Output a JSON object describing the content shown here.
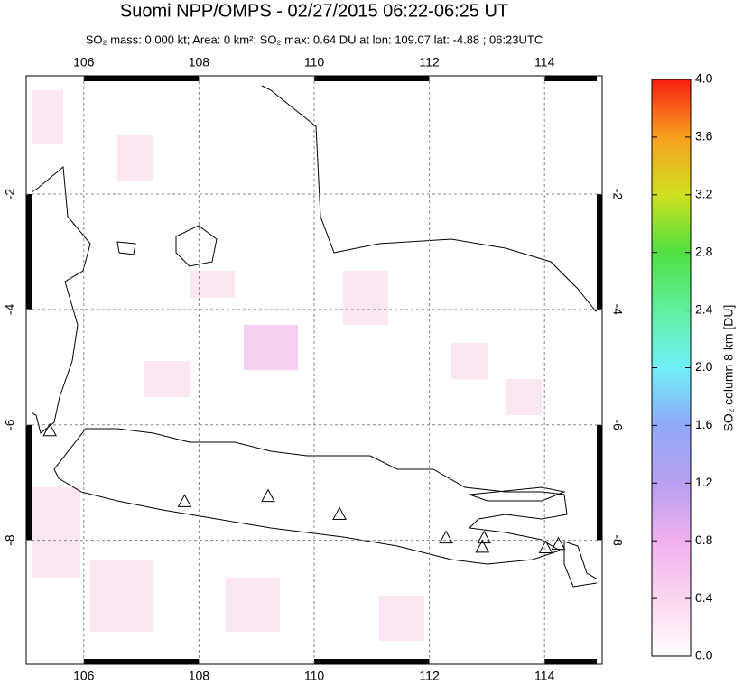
{
  "chart_data": {
    "type": "map",
    "title": "Suomi NPP/OMPS - 02/27/2015 06:22-06:25 UT",
    "subtitle": "SO₂ mass: 0.000 kt; Area: 0 km²; SO₂ max: 0.64 DU at lon: 109.07 lat: -4.88 ; 06:23UTC",
    "xlim": [
      105,
      115
    ],
    "xticks": [
      106,
      108,
      110,
      112,
      114
    ],
    "ylim": [
      -10.15,
      0.05
    ],
    "yticks": [
      -2,
      -4,
      -6,
      -8
    ],
    "grid": true,
    "volcanoes": {
      "x": [
        105.41,
        107.75,
        109.2,
        110.44,
        112.29,
        112.95,
        112.92,
        114.02,
        114.24
      ],
      "y": [
        -6.11,
        -7.34,
        -7.25,
        -7.56,
        -7.97,
        -7.97,
        -8.13,
        -8.14,
        -8.08
      ]
    },
    "colorbar": {
      "label": "SO₂ column 8 km [DU]",
      "lim": [
        0,
        4
      ],
      "ticks": [
        {
          "value": 0,
          "label": "0.0"
        },
        0.4,
        0.8,
        1.2,
        1.6,
        {
          "value": 2,
          "label": "2.0"
        },
        2.4,
        2.8,
        3.2,
        3.6,
        {
          "value": 4,
          "label": "4.0"
        }
      ]
    }
  }
}
